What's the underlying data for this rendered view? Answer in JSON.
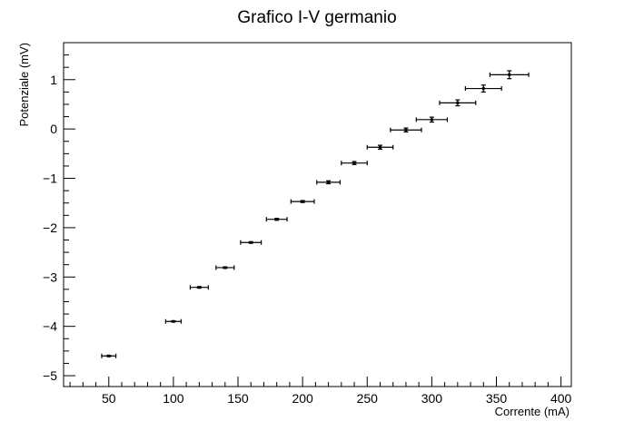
{
  "chart_data": {
    "type": "scatter",
    "title": "Grafico I-V germanio",
    "xlabel": "Corrente (mA)",
    "ylabel": "Potenziale (mV)",
    "xlim": [
      15,
      408
    ],
    "ylim": [
      -5.22,
      1.75
    ],
    "x_ticks": [
      50,
      100,
      150,
      200,
      250,
      300,
      350,
      400
    ],
    "x_tick_labels": [
      "50",
      "100",
      "150",
      "200",
      "250",
      "300",
      "350",
      "400"
    ],
    "y_ticks": [
      -5,
      -4,
      -3,
      -2,
      -1,
      0,
      1
    ],
    "y_tick_labels": [
      "−5",
      "−4",
      "−3",
      "−2",
      "−1",
      "0",
      "1"
    ],
    "x_minor_step": 10,
    "y_minor_step": 0.25,
    "grid": false,
    "points": [
      {
        "x": 50,
        "y": -4.6,
        "xerr": 5.5,
        "yerr": 0.012
      },
      {
        "x": 100,
        "y": -3.9,
        "xerr": 6,
        "yerr": 0.012
      },
      {
        "x": 120,
        "y": -3.21,
        "xerr": 7,
        "yerr": 0.015
      },
      {
        "x": 140,
        "y": -2.81,
        "xerr": 7,
        "yerr": 0.015
      },
      {
        "x": 160,
        "y": -2.3,
        "xerr": 8,
        "yerr": 0.015
      },
      {
        "x": 180,
        "y": -1.83,
        "xerr": 8,
        "yerr": 0.02
      },
      {
        "x": 200,
        "y": -1.47,
        "xerr": 9,
        "yerr": 0.02
      },
      {
        "x": 220,
        "y": -1.08,
        "xerr": 9,
        "yerr": 0.03
      },
      {
        "x": 240,
        "y": -0.69,
        "xerr": 10,
        "yerr": 0.03
      },
      {
        "x": 260,
        "y": -0.37,
        "xerr": 10,
        "yerr": 0.04
      },
      {
        "x": 280,
        "y": -0.02,
        "xerr": 12,
        "yerr": 0.04
      },
      {
        "x": 300,
        "y": 0.19,
        "xerr": 12,
        "yerr": 0.05
      },
      {
        "x": 320,
        "y": 0.53,
        "xerr": 14,
        "yerr": 0.06
      },
      {
        "x": 340,
        "y": 0.82,
        "xerr": 14,
        "yerr": 0.07
      },
      {
        "x": 360,
        "y": 1.1,
        "xerr": 15,
        "yerr": 0.08
      }
    ]
  }
}
